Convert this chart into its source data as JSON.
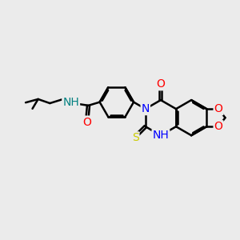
{
  "bg_color": "#ebebeb",
  "colors": {
    "N": "#0000ff",
    "O": "#ff0000",
    "S": "#cccc00",
    "NH_color": "#008080",
    "C": "#000000"
  },
  "bond_width": 1.8,
  "font_size": 10,
  "fig_width": 3.0,
  "fig_height": 3.0
}
